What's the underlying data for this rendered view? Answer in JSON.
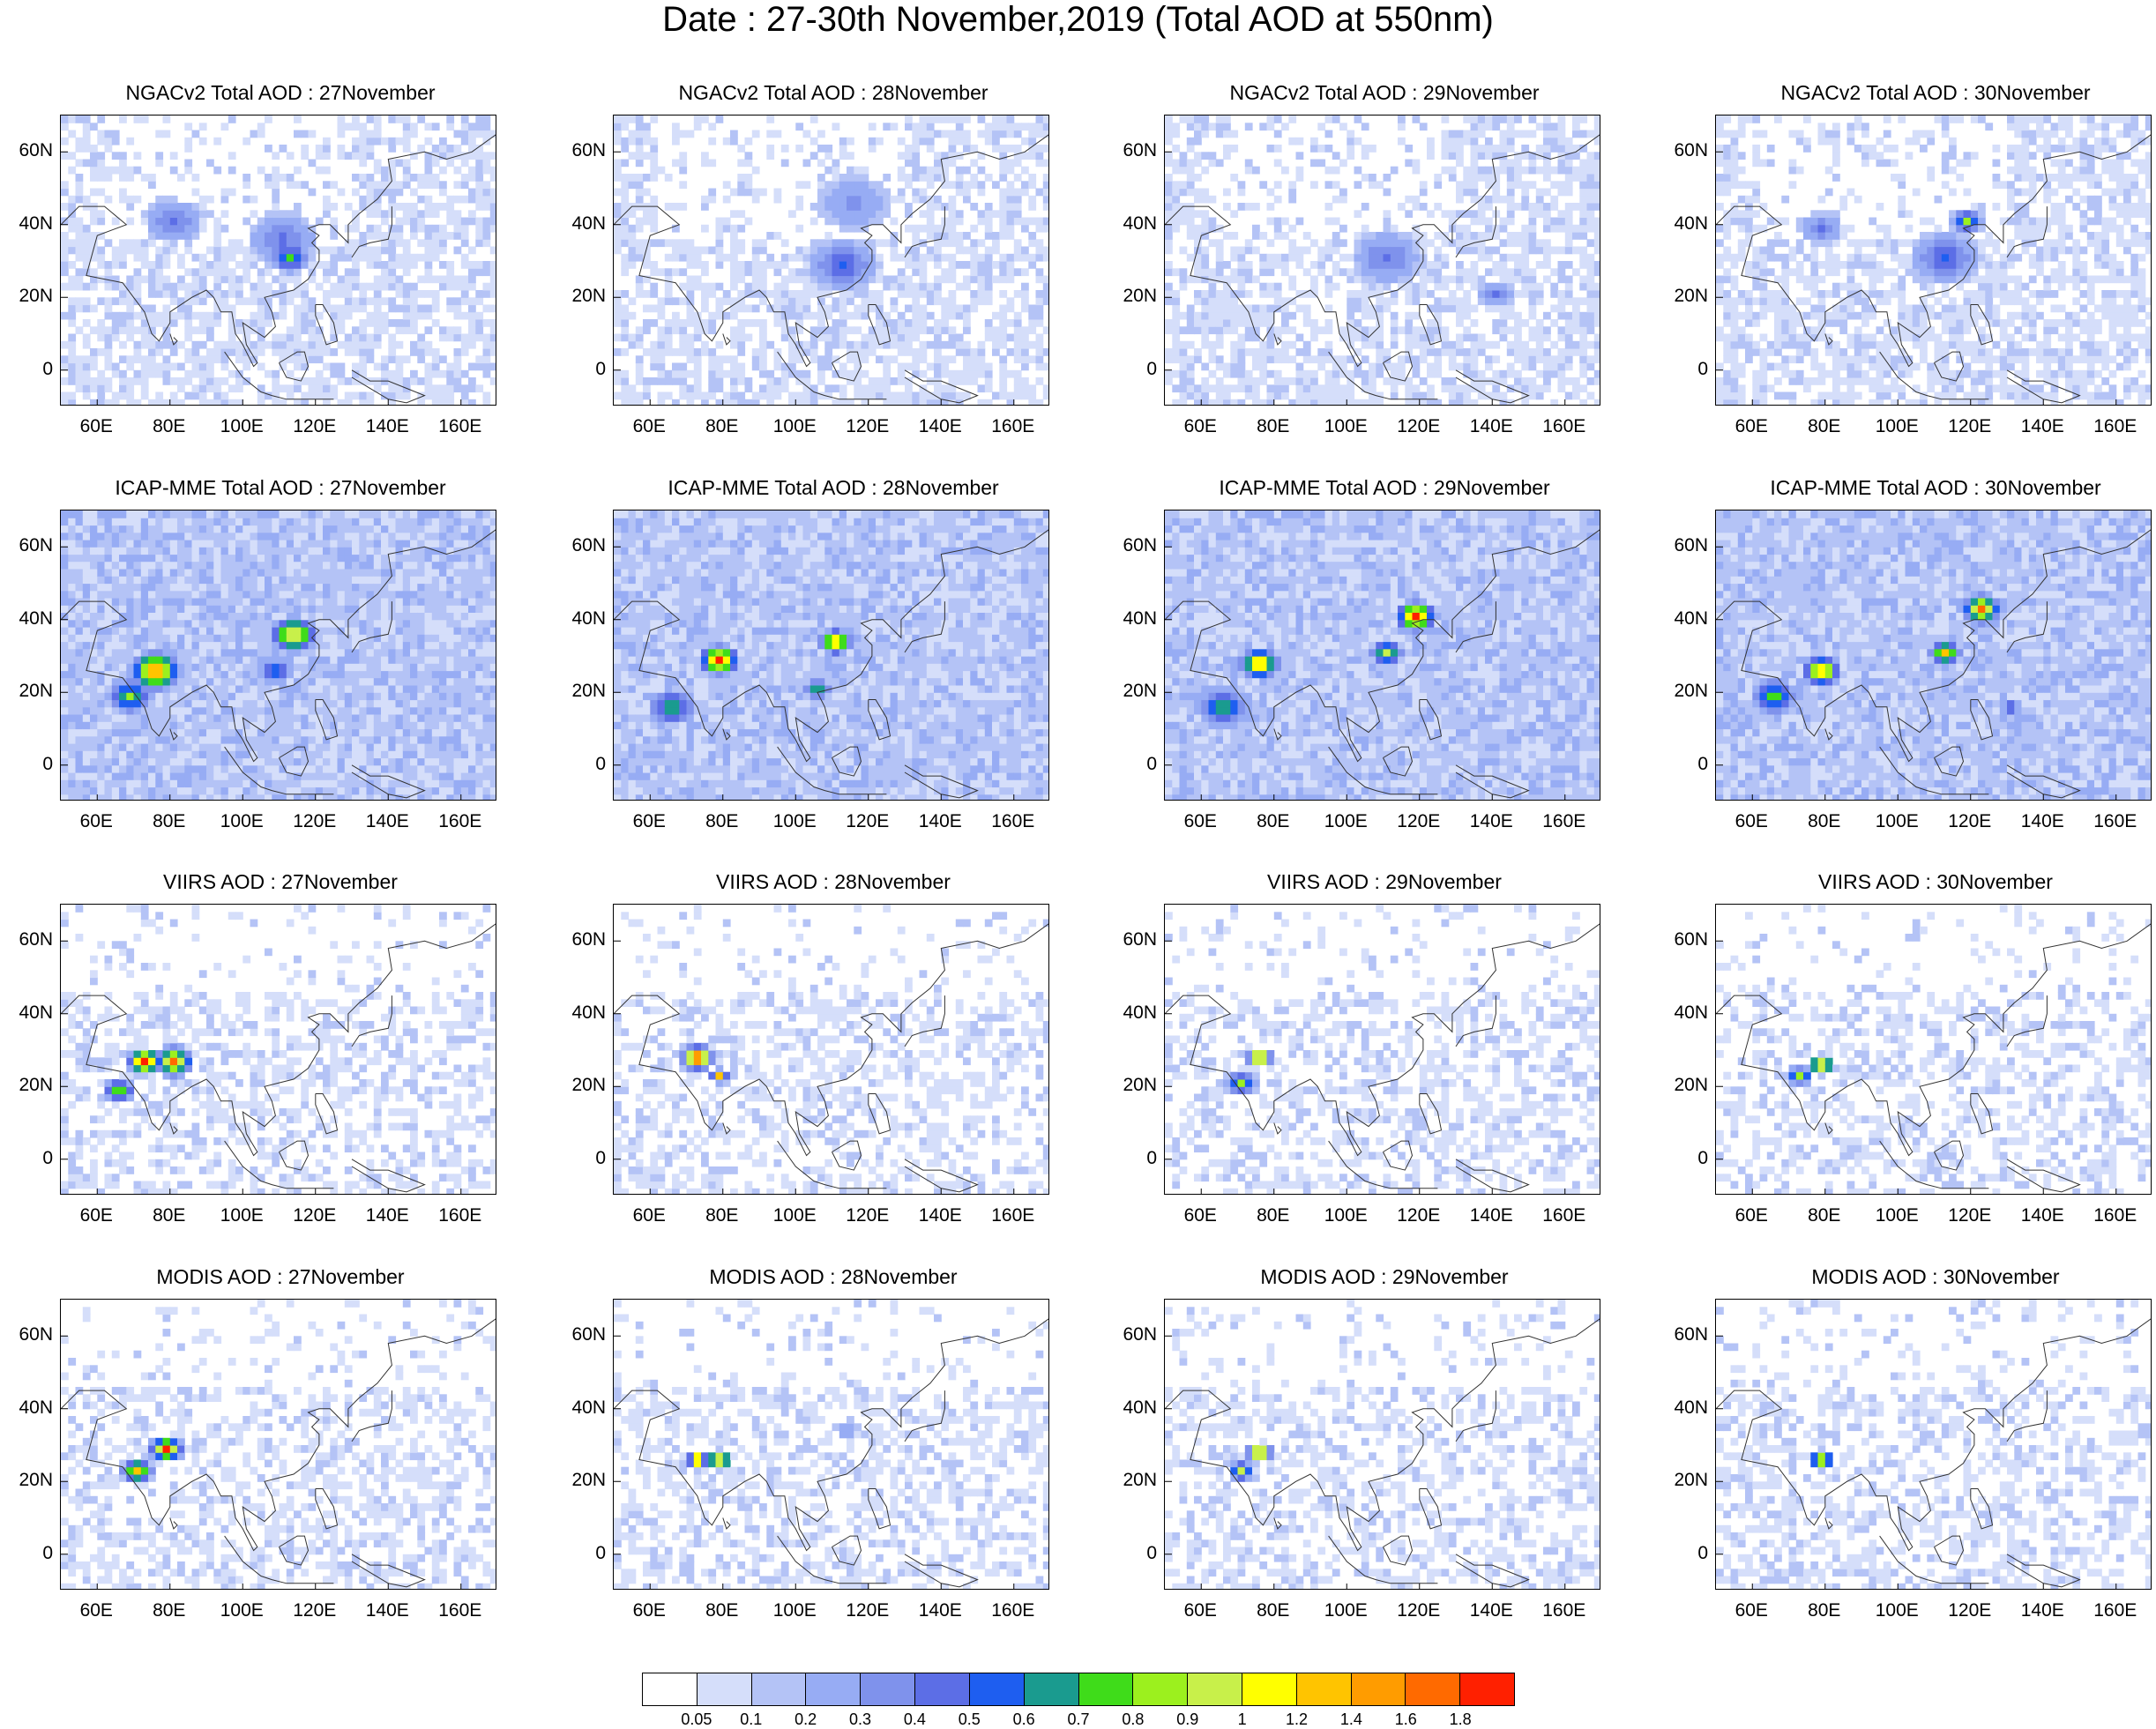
{
  "title": "Date : 27-30th November,2019 (Total AOD at 550nm)",
  "lat_labels": [
    "60N",
    "40N",
    "20N",
    "0"
  ],
  "lon_labels": [
    "60E",
    "80E",
    "100E",
    "120E",
    "140E",
    "160E"
  ],
  "rows": [
    {
      "product": "NGACv2",
      "titles": [
        "NGACv2 Total AOD : 27November",
        "NGACv2 Total AOD : 28November",
        "NGACv2 Total AOD : 29November",
        "NGACv2 Total AOD : 30November"
      ]
    },
    {
      "product": "ICAP-MME",
      "titles": [
        "ICAP-MME Total AOD : 27November",
        "ICAP-MME Total AOD : 28November",
        "ICAP-MME Total AOD : 29November",
        "ICAP-MME Total AOD : 30November"
      ]
    },
    {
      "product": "VIIRS",
      "titles": [
        "VIIRS AOD : 27November",
        "VIIRS AOD : 28November",
        "VIIRS AOD : 29November",
        "VIIRS AOD : 30November"
      ]
    },
    {
      "product": "MODIS",
      "titles": [
        "MODIS AOD : 27November",
        "MODIS AOD : 28November",
        "MODIS AOD : 29November",
        "MODIS AOD : 30November"
      ]
    }
  ],
  "colorbar": {
    "labels": [
      "0.05",
      "0.1",
      "0.2",
      "0.3",
      "0.4",
      "0.5",
      "0.6",
      "0.7",
      "0.8",
      "0.9",
      "1",
      "1.2",
      "1.4",
      "1.6",
      "1.8"
    ],
    "colors": [
      "#ffffff",
      "#d5defa",
      "#b4c3f6",
      "#97acf4",
      "#7f92ec",
      "#5c6ee6",
      "#1e5ef0",
      "#1a9b8f",
      "#3fdc1a",
      "#9cf01e",
      "#c8f04a",
      "#ffff00",
      "#ffc400",
      "#ff9c00",
      "#ff6a00",
      "#ff2000"
    ]
  }
}
